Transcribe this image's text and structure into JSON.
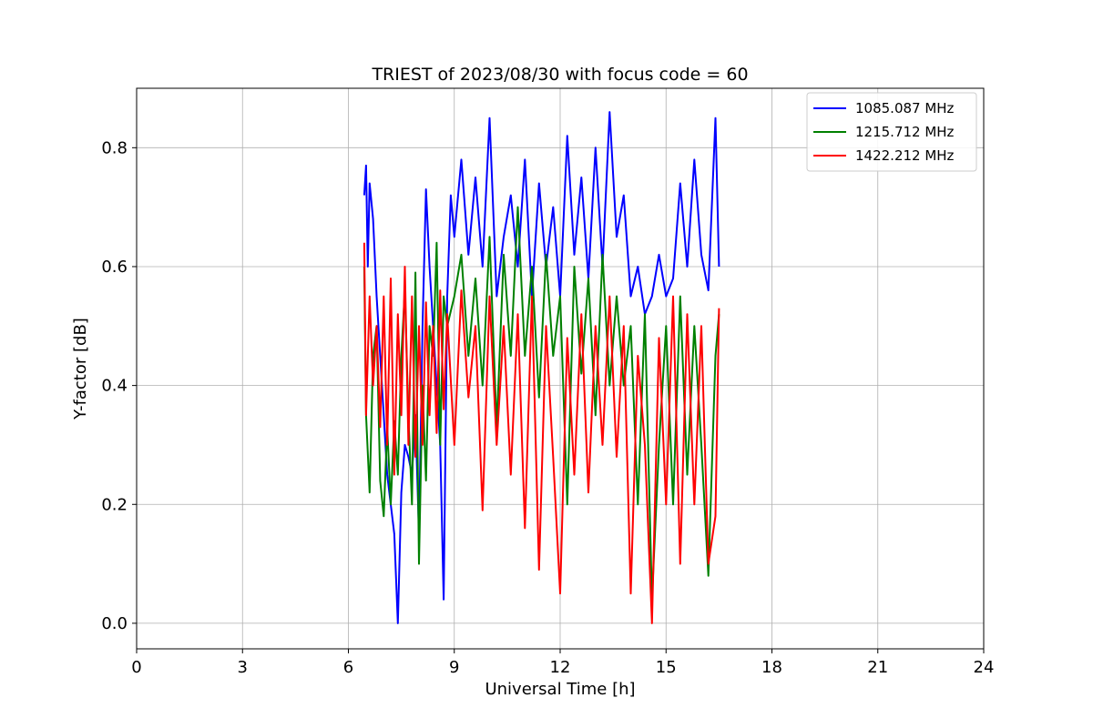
{
  "chart_data": {
    "type": "line",
    "title": "TRIEST of 2023/08/30 with focus code = 60",
    "xlabel": "Universal Time [h]",
    "ylabel": "Y-factor [dB]",
    "xlim": [
      0,
      24
    ],
    "ylim": [
      -0.043,
      0.9
    ],
    "x_ticks": [
      0,
      3,
      6,
      9,
      12,
      15,
      18,
      21,
      24
    ],
    "y_ticks": [
      0.0,
      0.2,
      0.4,
      0.6,
      0.8
    ],
    "y_tick_labels": [
      "0.0",
      "0.2",
      "0.4",
      "0.6",
      "0.8"
    ],
    "grid": true,
    "legend_position": "top-right",
    "series": [
      {
        "name": "1085.087 MHz",
        "color": "#0000ff",
        "x": [
          6.45,
          6.5,
          6.55,
          6.6,
          6.7,
          6.8,
          6.9,
          7.0,
          7.1,
          7.2,
          7.3,
          7.4,
          7.5,
          7.6,
          7.7,
          7.8,
          7.9,
          8.0,
          8.1,
          8.2,
          8.3,
          8.4,
          8.5,
          8.6,
          8.7,
          8.8,
          8.9,
          9.0,
          9.2,
          9.4,
          9.6,
          9.8,
          10.0,
          10.2,
          10.4,
          10.6,
          10.8,
          11.0,
          11.2,
          11.4,
          11.6,
          11.8,
          12.0,
          12.2,
          12.4,
          12.6,
          12.8,
          13.0,
          13.2,
          13.4,
          13.6,
          13.8,
          14.0,
          14.2,
          14.4,
          14.6,
          14.8,
          15.0,
          15.2,
          15.4,
          15.6,
          15.8,
          16.0,
          16.2,
          16.4,
          16.5
        ],
        "y": [
          0.72,
          0.77,
          0.6,
          0.74,
          0.68,
          0.55,
          0.45,
          0.35,
          0.25,
          0.2,
          0.15,
          0.0,
          0.22,
          0.3,
          0.28,
          0.25,
          0.35,
          0.15,
          0.5,
          0.73,
          0.6,
          0.5,
          0.4,
          0.3,
          0.04,
          0.55,
          0.72,
          0.65,
          0.78,
          0.62,
          0.75,
          0.6,
          0.85,
          0.55,
          0.65,
          0.72,
          0.6,
          0.78,
          0.55,
          0.74,
          0.6,
          0.7,
          0.55,
          0.82,
          0.62,
          0.75,
          0.58,
          0.8,
          0.6,
          0.86,
          0.65,
          0.72,
          0.55,
          0.6,
          0.52,
          0.55,
          0.62,
          0.55,
          0.58,
          0.74,
          0.6,
          0.78,
          0.62,
          0.56,
          0.85,
          0.6
        ]
      },
      {
        "name": "1215.712 MHz",
        "color": "#008000",
        "x": [
          6.45,
          6.5,
          6.6,
          6.7,
          6.8,
          6.9,
          7.0,
          7.1,
          7.2,
          7.3,
          7.4,
          7.5,
          7.6,
          7.7,
          7.8,
          7.9,
          8.0,
          8.1,
          8.2,
          8.3,
          8.4,
          8.5,
          8.6,
          8.7,
          8.8,
          9.0,
          9.2,
          9.4,
          9.6,
          9.8,
          10.0,
          10.2,
          10.4,
          10.6,
          10.8,
          11.0,
          11.2,
          11.4,
          11.6,
          11.8,
          12.0,
          12.2,
          12.4,
          12.6,
          12.8,
          13.0,
          13.2,
          13.4,
          13.6,
          13.8,
          14.0,
          14.2,
          14.4,
          14.6,
          14.8,
          15.0,
          15.2,
          15.4,
          15.6,
          15.8,
          16.0,
          16.2,
          16.4,
          16.5
        ],
        "y": [
          0.6,
          0.35,
          0.22,
          0.45,
          0.5,
          0.24,
          0.18,
          0.33,
          0.2,
          0.34,
          0.25,
          0.45,
          0.56,
          0.35,
          0.2,
          0.59,
          0.1,
          0.4,
          0.24,
          0.5,
          0.45,
          0.64,
          0.3,
          0.55,
          0.5,
          0.55,
          0.62,
          0.45,
          0.58,
          0.4,
          0.65,
          0.33,
          0.62,
          0.45,
          0.7,
          0.45,
          0.6,
          0.38,
          0.62,
          0.45,
          0.55,
          0.2,
          0.6,
          0.42,
          0.58,
          0.35,
          0.62,
          0.4,
          0.55,
          0.4,
          0.5,
          0.2,
          0.52,
          0.04,
          0.3,
          0.5,
          0.2,
          0.55,
          0.25,
          0.5,
          0.3,
          0.08,
          0.45,
          0.52
        ]
      },
      {
        "name": "1422.212 MHz",
        "color": "#ff0000",
        "x": [
          6.45,
          6.5,
          6.6,
          6.7,
          6.8,
          6.9,
          7.0,
          7.1,
          7.2,
          7.3,
          7.4,
          7.5,
          7.6,
          7.7,
          7.8,
          7.9,
          8.0,
          8.1,
          8.2,
          8.3,
          8.4,
          8.5,
          8.6,
          8.7,
          8.8,
          9.0,
          9.2,
          9.4,
          9.6,
          9.8,
          10.0,
          10.2,
          10.4,
          10.6,
          10.8,
          11.0,
          11.2,
          11.4,
          11.6,
          11.8,
          12.0,
          12.2,
          12.4,
          12.6,
          12.8,
          13.0,
          13.2,
          13.4,
          13.6,
          13.8,
          14.0,
          14.2,
          14.4,
          14.6,
          14.8,
          15.0,
          15.2,
          15.4,
          15.6,
          15.8,
          16.0,
          16.2,
          16.4,
          16.5
        ],
        "y": [
          0.64,
          0.35,
          0.55,
          0.4,
          0.5,
          0.33,
          0.55,
          0.3,
          0.58,
          0.25,
          0.52,
          0.35,
          0.6,
          0.3,
          0.55,
          0.28,
          0.5,
          0.3,
          0.54,
          0.35,
          0.5,
          0.32,
          0.56,
          0.36,
          0.52,
          0.3,
          0.56,
          0.38,
          0.5,
          0.19,
          0.55,
          0.3,
          0.5,
          0.25,
          0.52,
          0.16,
          0.55,
          0.09,
          0.5,
          0.28,
          0.05,
          0.48,
          0.25,
          0.52,
          0.22,
          0.5,
          0.3,
          0.55,
          0.28,
          0.5,
          0.05,
          0.45,
          0.3,
          0.0,
          0.48,
          0.2,
          0.55,
          0.1,
          0.52,
          0.2,
          0.5,
          0.1,
          0.18,
          0.53
        ]
      }
    ]
  }
}
